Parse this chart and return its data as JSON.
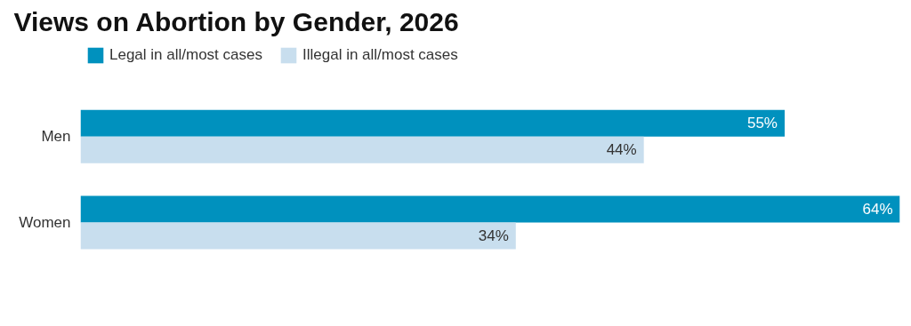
{
  "chart_data": {
    "type": "bar",
    "orientation": "horizontal",
    "title": "Views on Abortion by Gender, 2026",
    "categories": [
      "Men",
      "Women"
    ],
    "series": [
      {
        "name": "Legal in all/most cases",
        "color": "#0091be",
        "values": [
          55,
          64
        ],
        "value_labels": [
          "55%",
          "64%"
        ]
      },
      {
        "name": "Illegal in all/most cases",
        "color": "#c8deee",
        "values": [
          44,
          34
        ],
        "value_labels": [
          "44%",
          "34%"
        ]
      }
    ],
    "legend": "top left",
    "grid": false
  }
}
